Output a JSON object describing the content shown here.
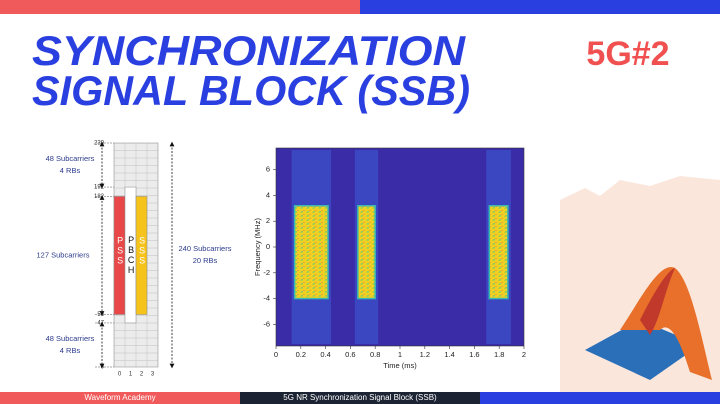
{
  "header": {
    "title_lines": [
      "SYNCHRONIZATION",
      "SIGNAL BLOCK (SSB)"
    ],
    "tag": "5G#2"
  },
  "resource_grid": {
    "ylim": [
      0,
      239
    ],
    "yticks": [
      239,
      192,
      182,
      56,
      47,
      0
    ],
    "xticks": [
      0,
      1,
      2,
      3
    ],
    "pss": {
      "label": "PSS",
      "range": [
        56,
        182
      ]
    },
    "pbch": {
      "label": "PBCH",
      "range": [
        47,
        192
      ]
    },
    "sss": {
      "label": "SSS",
      "range": [
        56,
        182
      ]
    },
    "annotations": [
      {
        "lines": [
          "48 Subcarriers",
          "4 RBs"
        ],
        "range": [
          192,
          239
        ]
      },
      {
        "lines": [
          "127 Subcarriers"
        ],
        "range": [
          56,
          182
        ]
      },
      {
        "lines": [
          "48 Subcarriers",
          "4 RBs"
        ],
        "range": [
          0,
          47
        ]
      },
      {
        "lines": [
          "240 Subcarriers",
          "20 RBs"
        ],
        "range": [
          0,
          239
        ]
      }
    ]
  },
  "chart_data": {
    "type": "spectrogram",
    "xlabel": "Time (ms)",
    "ylabel": "Frequency (MHz)",
    "xlim": [
      0,
      2
    ],
    "ylim": [
      -7.68,
      7.68
    ],
    "xticks": [
      0,
      0.2,
      0.4,
      0.6,
      0.8,
      1,
      1.2,
      1.4,
      1.6,
      1.8,
      2
    ],
    "yticks": [
      -6,
      -4,
      -2,
      0,
      2,
      4,
      6
    ],
    "bursts": [
      {
        "x": [
          0.15,
          0.42
        ],
        "y": [
          -4,
          3.2
        ]
      },
      {
        "x": [
          0.66,
          0.8
        ],
        "y": [
          -4,
          3.2
        ]
      },
      {
        "x": [
          1.72,
          1.87
        ],
        "y": [
          -4,
          3.2
        ]
      }
    ]
  },
  "footer": {
    "left": "Waveform Academy",
    "center": "5G NR Synchronization Signal Block (SSB)"
  }
}
